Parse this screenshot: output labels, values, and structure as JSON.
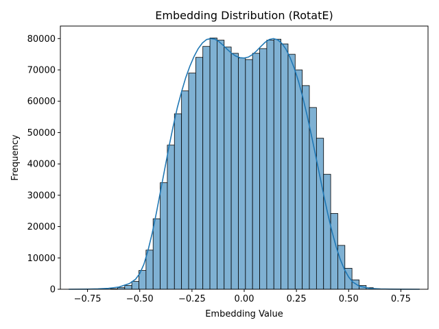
{
  "chart_data": {
    "type": "bar",
    "title": "Embedding Distribution (RotatE)",
    "xlabel": "Embedding Value",
    "ylabel": "Frequency",
    "xlim": [
      -0.88,
      0.88
    ],
    "ylim": [
      0,
      84000
    ],
    "x_ticks": [
      -0.75,
      -0.5,
      -0.25,
      0.0,
      0.25,
      0.5,
      0.75
    ],
    "x_tick_labels": [
      "−0.75",
      "−0.50",
      "−0.25",
      "0.00",
      "0.25",
      "0.50",
      "0.75"
    ],
    "y_ticks": [
      0,
      10000,
      20000,
      30000,
      40000,
      50000,
      60000,
      70000,
      80000
    ],
    "y_tick_labels": [
      "0",
      "10000",
      "20000",
      "30000",
      "40000",
      "50000",
      "60000",
      "70000",
      "80000"
    ],
    "bar_color": "#7fb1d3",
    "bar_edge_color": "#000000",
    "kde_color": "#1f77b4",
    "grid": false,
    "bins": [
      {
        "x0": -0.844,
        "x1": -0.81,
        "y": 0
      },
      {
        "x0": -0.81,
        "x1": -0.776,
        "y": 0
      },
      {
        "x0": -0.776,
        "x1": -0.742,
        "y": 0
      },
      {
        "x0": -0.742,
        "x1": -0.708,
        "y": 0
      },
      {
        "x0": -0.708,
        "x1": -0.674,
        "y": 0
      },
      {
        "x0": -0.674,
        "x1": -0.64,
        "y": 50
      },
      {
        "x0": -0.64,
        "x1": -0.606,
        "y": 150
      },
      {
        "x0": -0.606,
        "x1": -0.572,
        "y": 500
      },
      {
        "x0": -0.572,
        "x1": -0.538,
        "y": 1200
      },
      {
        "x0": -0.538,
        "x1": -0.504,
        "y": 2500
      },
      {
        "x0": -0.504,
        "x1": -0.47,
        "y": 6000
      },
      {
        "x0": -0.47,
        "x1": -0.436,
        "y": 12500
      },
      {
        "x0": -0.436,
        "x1": -0.402,
        "y": 22500
      },
      {
        "x0": -0.402,
        "x1": -0.368,
        "y": 34000
      },
      {
        "x0": -0.368,
        "x1": -0.334,
        "y": 46000
      },
      {
        "x0": -0.334,
        "x1": -0.3,
        "y": 56000
      },
      {
        "x0": -0.3,
        "x1": -0.266,
        "y": 63300
      },
      {
        "x0": -0.266,
        "x1": -0.232,
        "y": 69000
      },
      {
        "x0": -0.232,
        "x1": -0.198,
        "y": 74000
      },
      {
        "x0": -0.198,
        "x1": -0.164,
        "y": 77500
      },
      {
        "x0": -0.164,
        "x1": -0.13,
        "y": 80200
      },
      {
        "x0": -0.13,
        "x1": -0.096,
        "y": 79500
      },
      {
        "x0": -0.096,
        "x1": -0.062,
        "y": 77300
      },
      {
        "x0": -0.062,
        "x1": -0.028,
        "y": 75300
      },
      {
        "x0": -0.028,
        "x1": 0.006,
        "y": 73800
      },
      {
        "x0": 0.006,
        "x1": 0.04,
        "y": 73300
      },
      {
        "x0": 0.04,
        "x1": 0.074,
        "y": 75300
      },
      {
        "x0": 0.074,
        "x1": 0.108,
        "y": 76800
      },
      {
        "x0": 0.108,
        "x1": 0.142,
        "y": 79500
      },
      {
        "x0": 0.142,
        "x1": 0.176,
        "y": 79800
      },
      {
        "x0": 0.176,
        "x1": 0.21,
        "y": 78300
      },
      {
        "x0": 0.21,
        "x1": 0.244,
        "y": 75000
      },
      {
        "x0": 0.244,
        "x1": 0.278,
        "y": 70000
      },
      {
        "x0": 0.278,
        "x1": 0.312,
        "y": 65000
      },
      {
        "x0": 0.312,
        "x1": 0.346,
        "y": 58000
      },
      {
        "x0": 0.346,
        "x1": 0.38,
        "y": 48200
      },
      {
        "x0": 0.38,
        "x1": 0.414,
        "y": 36700
      },
      {
        "x0": 0.414,
        "x1": 0.448,
        "y": 24200
      },
      {
        "x0": 0.448,
        "x1": 0.482,
        "y": 14000
      },
      {
        "x0": 0.482,
        "x1": 0.516,
        "y": 6700
      },
      {
        "x0": 0.516,
        "x1": 0.55,
        "y": 3000
      },
      {
        "x0": 0.55,
        "x1": 0.584,
        "y": 1200
      },
      {
        "x0": 0.584,
        "x1": 0.618,
        "y": 500
      },
      {
        "x0": 0.618,
        "x1": 0.652,
        "y": 150
      },
      {
        "x0": 0.652,
        "x1": 0.686,
        "y": 50
      },
      {
        "x0": 0.686,
        "x1": 0.72,
        "y": 0
      },
      {
        "x0": 0.72,
        "x1": 0.754,
        "y": 0
      },
      {
        "x0": 0.754,
        "x1": 0.788,
        "y": 0
      },
      {
        "x0": 0.788,
        "x1": 0.822,
        "y": 0
      },
      {
        "x0": 0.822,
        "x1": 0.844,
        "y": 0
      }
    ],
    "kde": [
      [
        -0.84,
        0
      ],
      [
        -0.75,
        50
      ],
      [
        -0.7,
        120
      ],
      [
        -0.65,
        300
      ],
      [
        -0.6,
        700
      ],
      [
        -0.55,
        1800
      ],
      [
        -0.52,
        3200
      ],
      [
        -0.5,
        5000
      ],
      [
        -0.48,
        8000
      ],
      [
        -0.46,
        12500
      ],
      [
        -0.44,
        18000
      ],
      [
        -0.42,
        24500
      ],
      [
        -0.4,
        31500
      ],
      [
        -0.38,
        38500
      ],
      [
        -0.36,
        45500
      ],
      [
        -0.34,
        52000
      ],
      [
        -0.32,
        58000
      ],
      [
        -0.3,
        63000
      ],
      [
        -0.28,
        67500
      ],
      [
        -0.26,
        71200
      ],
      [
        -0.24,
        74300
      ],
      [
        -0.22,
        76800
      ],
      [
        -0.2,
        78600
      ],
      [
        -0.18,
        79700
      ],
      [
        -0.16,
        80000
      ],
      [
        -0.14,
        79800
      ],
      [
        -0.12,
        79000
      ],
      [
        -0.1,
        77800
      ],
      [
        -0.08,
        76500
      ],
      [
        -0.06,
        75300
      ],
      [
        -0.04,
        74400
      ],
      [
        -0.02,
        73900
      ],
      [
        0.0,
        73800
      ],
      [
        0.02,
        74100
      ],
      [
        0.04,
        74900
      ],
      [
        0.06,
        76100
      ],
      [
        0.08,
        77500
      ],
      [
        0.1,
        78800
      ],
      [
        0.12,
        79700
      ],
      [
        0.14,
        80000
      ],
      [
        0.16,
        79600
      ],
      [
        0.18,
        78500
      ],
      [
        0.2,
        76600
      ],
      [
        0.22,
        73900
      ],
      [
        0.24,
        70500
      ],
      [
        0.26,
        66300
      ],
      [
        0.28,
        61400
      ],
      [
        0.3,
        55800
      ],
      [
        0.32,
        49700
      ],
      [
        0.34,
        43300
      ],
      [
        0.36,
        36800
      ],
      [
        0.38,
        30300
      ],
      [
        0.4,
        24100
      ],
      [
        0.42,
        18500
      ],
      [
        0.44,
        13600
      ],
      [
        0.46,
        9500
      ],
      [
        0.48,
        6300
      ],
      [
        0.5,
        3900
      ],
      [
        0.52,
        2300
      ],
      [
        0.55,
        1000
      ],
      [
        0.6,
        300
      ],
      [
        0.65,
        100
      ],
      [
        0.7,
        30
      ],
      [
        0.75,
        10
      ],
      [
        0.84,
        0
      ]
    ]
  }
}
